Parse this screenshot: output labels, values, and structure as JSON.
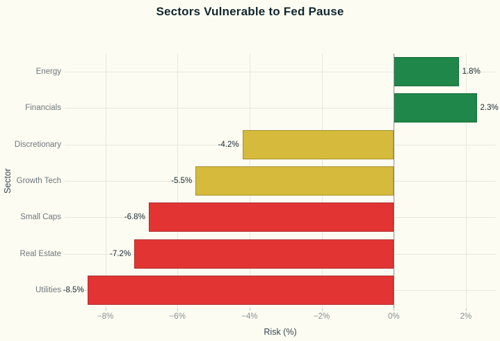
{
  "chart_data": {
    "type": "bar",
    "orientation": "horizontal",
    "title": "Sectors Vulnerable to Fed Pause",
    "xlabel": "Risk (%)",
    "ylabel": "Sector",
    "categories": [
      "Energy",
      "Financials",
      "Discretionary",
      "Growth Tech",
      "Small Caps",
      "Real Estate",
      "Utilities"
    ],
    "values": [
      1.8,
      2.3,
      -4.2,
      -5.5,
      -6.8,
      -7.2,
      -8.5
    ],
    "value_labels": [
      "1.8%",
      "2.3%",
      "-4.2%",
      "-5.5%",
      "-6.8%",
      "-7.2%",
      "-8.5%"
    ],
    "bar_colors": [
      "#1f8749",
      "#1f8749",
      "#d6ba3c",
      "#d6ba3c",
      "#e23533",
      "#e23533",
      "#e23533"
    ],
    "x_ticks": [
      {
        "value": -8,
        "label": "−8%"
      },
      {
        "value": -6,
        "label": "−6%"
      },
      {
        "value": -4,
        "label": "−4%"
      },
      {
        "value": -2,
        "label": "−2%"
      },
      {
        "value": 0,
        "label": "0%"
      },
      {
        "value": 2,
        "label": "2%"
      }
    ],
    "xlim": [
      -9.13,
      2.83
    ],
    "grid": true,
    "legend": "none"
  },
  "style": {
    "background": "#fcfcf2",
    "grid_color": "#e7e7df",
    "zero_line_color": "#8c8c8a",
    "tick_mark_color": "#c4c4bc",
    "title_color": "#11262f",
    "category_label_color": "#6f767c",
    "tick_label_color": "#878d92",
    "value_label_color": "#1b2b33",
    "axis_title_color": "#374650"
  }
}
